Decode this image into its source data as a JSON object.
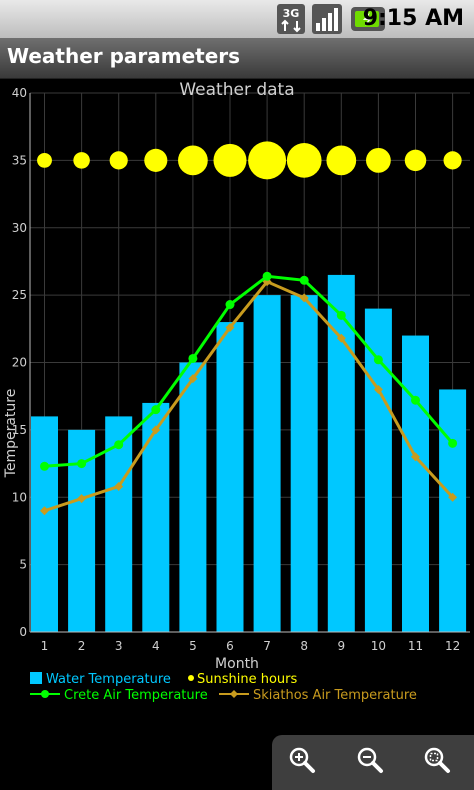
{
  "status_bar": {
    "network": "3G",
    "time": "9:15 AM"
  },
  "app": {
    "title": "Weather parameters"
  },
  "zoom_controls": [
    "zoom-in",
    "zoom-out",
    "zoom-reset"
  ],
  "chart_data": {
    "type": "bar",
    "title": "Weather data",
    "xlabel": "Month",
    "ylabel": "Temperature",
    "ylim": [
      0,
      40
    ],
    "y_ticks": [
      0,
      5,
      10,
      15,
      20,
      25,
      30,
      35,
      40
    ],
    "categories": [
      "1",
      "2",
      "3",
      "4",
      "5",
      "6",
      "7",
      "8",
      "9",
      "10",
      "11",
      "12"
    ],
    "grid": true,
    "series": [
      {
        "name": "Water Temperature",
        "kind": "bar",
        "color": "#00c8ff",
        "values": [
          16,
          15,
          16,
          17,
          20,
          23,
          25,
          25,
          26.5,
          24,
          22,
          18
        ]
      },
      {
        "name": "Sunshine hours",
        "kind": "bubble",
        "color": "#ffff00",
        "y_position": 35,
        "sizes": [
          4.5,
          5,
          5.5,
          7,
          9,
          10,
          11.5,
          10.5,
          9,
          7.5,
          6.5,
          5.5
        ]
      },
      {
        "name": "Crete Air Temperature",
        "kind": "line",
        "color": "#00ff00",
        "marker": "circle",
        "values": [
          12.3,
          12.5,
          13.9,
          16.5,
          20.3,
          24.3,
          26.4,
          26.1,
          23.5,
          20.2,
          17.2,
          14
        ]
      },
      {
        "name": "Skiathos Air Temperature",
        "kind": "line",
        "color": "#c89b1e",
        "marker": "diamond",
        "values": [
          9,
          9.9,
          10.8,
          15,
          18.8,
          22.6,
          26,
          24.8,
          21.8,
          18,
          13,
          10
        ]
      }
    ],
    "legend_position": "bottom"
  }
}
